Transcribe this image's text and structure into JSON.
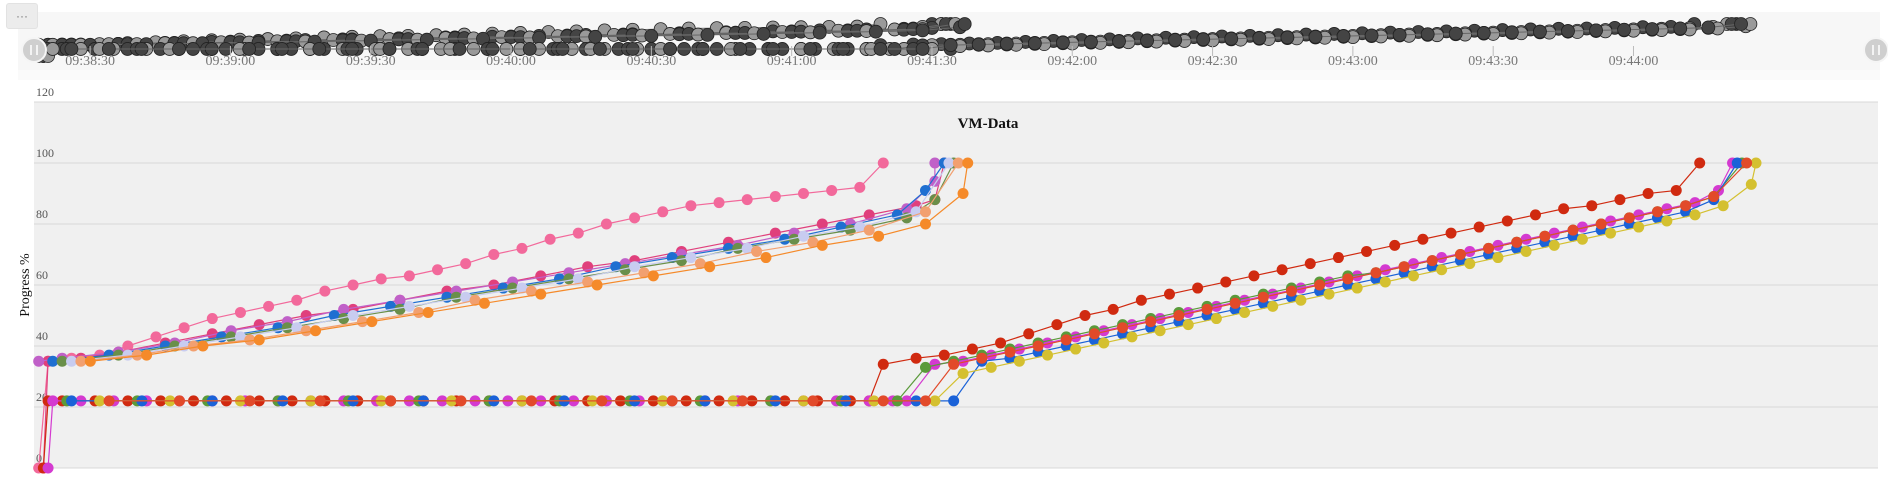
{
  "menu": {
    "icon": "ellipsis-icon",
    "label": "···"
  },
  "chart_data": {
    "type": "line",
    "title": "VM-Data",
    "ylabel": "Progress %",
    "xlabel": "",
    "ylim": [
      0,
      120
    ],
    "yticks": [
      "0",
      "20",
      "40",
      "60",
      "80",
      "100",
      "120"
    ],
    "grid": true,
    "legend": "none",
    "navigator": {
      "xlim": [
        "09:38:18",
        "09:44:51"
      ],
      "ticks": [
        "09:38:30",
        "09:39:00",
        "09:39:30",
        "09:40:00",
        "09:40:30",
        "09:41:00",
        "09:41:30",
        "09:42:00",
        "09:42:30",
        "09:43:00",
        "09:43:30",
        "09:44:00"
      ]
    },
    "main_xlim": [
      "09:38:18",
      "09:44:51"
    ],
    "colors": {
      "plot_bg": "#f0f0f0",
      "nav_bg": "#f7f7f7",
      "grid": "#d8d8d8",
      "nav_marker": "#444444"
    },
    "series": [
      {
        "color": "#f2699b",
        "x": [
          "09:38:19",
          "09:38:21",
          "09:38:26",
          "09:38:32",
          "09:38:38",
          "09:38:44",
          "09:38:50",
          "09:38:56",
          "09:39:02",
          "09:39:08",
          "09:39:14",
          "09:39:20",
          "09:39:26",
          "09:39:32",
          "09:39:38",
          "09:39:44",
          "09:39:50",
          "09:39:56",
          "09:40:02",
          "09:40:08",
          "09:40:14",
          "09:40:20",
          "09:40:26",
          "09:40:32",
          "09:40:38",
          "09:40:44",
          "09:40:50",
          "09:40:56",
          "09:41:02",
          "09:41:08",
          "09:41:14",
          "09:41:19"
        ],
        "y": [
          0,
          35,
          36,
          37,
          40,
          43,
          46,
          49,
          51,
          53,
          55,
          58,
          60,
          62,
          63,
          65,
          67,
          70,
          72,
          75,
          77,
          80,
          82,
          84,
          86,
          87,
          88,
          89,
          90,
          91,
          92,
          100
        ]
      },
      {
        "color": "#e0407c",
        "x": [
          "09:38:20",
          "09:38:21",
          "09:38:28",
          "09:38:36",
          "09:38:46",
          "09:38:56",
          "09:39:06",
          "09:39:16",
          "09:39:26",
          "09:39:36",
          "09:39:46",
          "09:39:56",
          "09:40:06",
          "09:40:16",
          "09:40:26",
          "09:40:36",
          "09:40:46",
          "09:40:56",
          "09:41:06",
          "09:41:16",
          "09:41:26",
          "09:41:30",
          "09:41:32"
        ],
        "y": [
          0,
          35,
          36,
          38,
          41,
          44,
          47,
          50,
          52,
          55,
          58,
          60,
          63,
          66,
          68,
          71,
          74,
          77,
          80,
          83,
          86,
          88,
          100
        ]
      },
      {
        "color": "#c060c8",
        "x": [
          "09:38:19",
          "09:38:24",
          "09:38:36",
          "09:38:48",
          "09:39:00",
          "09:39:12",
          "09:39:24",
          "09:39:36",
          "09:39:48",
          "09:40:00",
          "09:40:12",
          "09:40:24",
          "09:40:36",
          "09:40:48",
          "09:41:00",
          "09:41:12",
          "09:41:24",
          "09:41:30",
          "09:41:30"
        ],
        "y": [
          35,
          36,
          38,
          41,
          45,
          48,
          52,
          55,
          58,
          61,
          64,
          67,
          70,
          73,
          77,
          80,
          85,
          94,
          100
        ]
      },
      {
        "color": "#1f6fd1",
        "x": [
          "09:38:22",
          "09:38:34",
          "09:38:46",
          "09:38:58",
          "09:39:10",
          "09:39:22",
          "09:39:34",
          "09:39:46",
          "09:39:58",
          "09:40:10",
          "09:40:22",
          "09:40:34",
          "09:40:46",
          "09:40:58",
          "09:41:10",
          "09:41:22",
          "09:41:28",
          "09:41:32"
        ],
        "y": [
          35,
          37,
          40,
          43,
          46,
          50,
          53,
          56,
          59,
          62,
          66,
          69,
          72,
          75,
          79,
          83,
          91,
          100
        ]
      },
      {
        "color": "#6a8f4a",
        "x": [
          "09:38:24",
          "09:38:36",
          "09:38:48",
          "09:39:00",
          "09:39:12",
          "09:39:24",
          "09:39:36",
          "09:39:48",
          "09:40:00",
          "09:40:12",
          "09:40:24",
          "09:40:36",
          "09:40:48",
          "09:41:00",
          "09:41:12",
          "09:41:24",
          "09:41:30",
          "09:41:34"
        ],
        "y": [
          35,
          37,
          40,
          43,
          46,
          49,
          52,
          56,
          59,
          62,
          65,
          68,
          72,
          75,
          78,
          82,
          88,
          100
        ]
      },
      {
        "color": "#c8ccf0",
        "x": [
          "09:38:26",
          "09:38:38",
          "09:38:50",
          "09:39:02",
          "09:39:14",
          "09:39:26",
          "09:39:38",
          "09:39:50",
          "09:40:02",
          "09:40:14",
          "09:40:26",
          "09:40:38",
          "09:40:50",
          "09:41:02",
          "09:41:14",
          "09:41:26",
          "09:41:33"
        ],
        "y": [
          35,
          37,
          40,
          43,
          46,
          50,
          53,
          56,
          59,
          62,
          66,
          69,
          72,
          76,
          79,
          84,
          100
        ]
      },
      {
        "color": "#f2a070",
        "x": [
          "09:38:28",
          "09:38:40",
          "09:38:52",
          "09:39:04",
          "09:39:16",
          "09:39:28",
          "09:39:40",
          "09:39:52",
          "09:40:04",
          "09:40:16",
          "09:40:28",
          "09:40:40",
          "09:40:52",
          "09:41:04",
          "09:41:16",
          "09:41:28",
          "09:41:35"
        ],
        "y": [
          35,
          37,
          40,
          42,
          45,
          48,
          51,
          55,
          58,
          61,
          64,
          67,
          71,
          74,
          78,
          84,
          100
        ]
      },
      {
        "color": "#f58a2a",
        "x": [
          "09:38:30",
          "09:38:42",
          "09:38:54",
          "09:39:06",
          "09:39:18",
          "09:39:30",
          "09:39:42",
          "09:39:54",
          "09:40:06",
          "09:40:18",
          "09:40:30",
          "09:40:42",
          "09:40:54",
          "09:41:06",
          "09:41:18",
          "09:41:28",
          "09:41:36",
          "09:41:37"
        ],
        "y": [
          35,
          37,
          40,
          42,
          45,
          48,
          51,
          54,
          57,
          60,
          63,
          66,
          69,
          73,
          76,
          80,
          90,
          100
        ]
      },
      {
        "color": "#d02a10",
        "x": [
          "09:38:20",
          "09:38:21",
          "09:38:24",
          "09:38:31",
          "09:38:38",
          "09:38:45",
          "09:38:52",
          "09:38:59",
          "09:39:06",
          "09:39:13",
          "09:39:20",
          "09:39:27",
          "09:39:34",
          "09:39:41",
          "09:39:48",
          "09:39:55",
          "09:40:02",
          "09:40:09",
          "09:40:16",
          "09:40:23",
          "09:40:30",
          "09:40:37",
          "09:40:44",
          "09:40:51",
          "09:40:58",
          "09:41:05",
          "09:41:12",
          "09:41:16",
          "09:41:19",
          "09:41:26",
          "09:41:32",
          "09:41:38",
          "09:41:44",
          "09:41:50",
          "09:41:56",
          "09:42:02",
          "09:42:08",
          "09:42:14",
          "09:42:20",
          "09:42:26",
          "09:42:32",
          "09:42:38",
          "09:42:44",
          "09:42:50",
          "09:42:56",
          "09:43:02",
          "09:43:08",
          "09:43:14",
          "09:43:20",
          "09:43:26",
          "09:43:32",
          "09:43:38",
          "09:43:44",
          "09:43:50",
          "09:43:56",
          "09:44:02",
          "09:44:08",
          "09:44:13"
        ],
        "y": [
          0,
          22,
          22,
          22,
          22,
          22,
          22,
          22,
          22,
          22,
          22,
          22,
          22,
          22,
          22,
          22,
          22,
          22,
          22,
          22,
          22,
          22,
          22,
          22,
          22,
          22,
          22,
          22,
          34,
          36,
          37,
          39,
          41,
          44,
          47,
          50,
          52,
          55,
          57,
          59,
          61,
          63,
          65,
          67,
          69,
          71,
          73,
          75,
          77,
          79,
          81,
          83,
          85,
          86,
          88,
          90,
          91,
          100
        ]
      },
      {
        "color": "#d43ad0",
        "x": [
          "09:38:21",
          "09:38:22",
          "09:38:28",
          "09:38:35",
          "09:38:42",
          "09:38:49",
          "09:38:56",
          "09:39:03",
          "09:39:10",
          "09:39:17",
          "09:39:24",
          "09:39:31",
          "09:39:38",
          "09:39:45",
          "09:39:52",
          "09:39:59",
          "09:40:06",
          "09:40:13",
          "09:40:20",
          "09:40:27",
          "09:40:34",
          "09:40:41",
          "09:40:48",
          "09:40:55",
          "09:41:02",
          "09:41:09",
          "09:41:16",
          "09:41:21",
          "09:41:24",
          "09:41:30",
          "09:41:36",
          "09:41:42",
          "09:41:48",
          "09:41:54",
          "09:42:00",
          "09:42:06",
          "09:42:12",
          "09:42:18",
          "09:42:24",
          "09:42:30",
          "09:42:36",
          "09:42:42",
          "09:42:48",
          "09:42:54",
          "09:43:00",
          "09:43:06",
          "09:43:12",
          "09:43:18",
          "09:43:24",
          "09:43:30",
          "09:43:36",
          "09:43:42",
          "09:43:48",
          "09:43:54",
          "09:44:00",
          "09:44:06",
          "09:44:12",
          "09:44:17",
          "09:44:20"
        ],
        "y": [
          0,
          22,
          22,
          22,
          22,
          22,
          22,
          22,
          22,
          22,
          22,
          22,
          22,
          22,
          22,
          22,
          22,
          22,
          22,
          22,
          22,
          22,
          22,
          22,
          22,
          22,
          22,
          22,
          22,
          34,
          35,
          37,
          39,
          41,
          43,
          45,
          47,
          49,
          51,
          53,
          55,
          57,
          59,
          61,
          63,
          65,
          67,
          69,
          71,
          73,
          75,
          77,
          79,
          81,
          83,
          85,
          87,
          91,
          100
        ]
      },
      {
        "color": "#5a9a3a",
        "x": [
          "09:38:25",
          "09:38:40",
          "09:38:55",
          "09:39:10",
          "09:39:25",
          "09:39:40",
          "09:39:55",
          "09:40:10",
          "09:40:25",
          "09:40:40",
          "09:40:55",
          "09:41:10",
          "09:41:22",
          "09:41:28",
          "09:41:34",
          "09:41:40",
          "09:41:46",
          "09:41:52",
          "09:41:58",
          "09:42:04",
          "09:42:10",
          "09:42:16",
          "09:42:22",
          "09:42:28",
          "09:42:34",
          "09:42:40",
          "09:42:46",
          "09:42:52",
          "09:42:58",
          "09:43:04",
          "09:43:10",
          "09:43:16",
          "09:43:22",
          "09:43:28",
          "09:43:34",
          "09:43:40",
          "09:43:46",
          "09:43:52",
          "09:43:58",
          "09:44:04",
          "09:44:10",
          "09:44:16",
          "09:44:22"
        ],
        "y": [
          22,
          22,
          22,
          22,
          22,
          22,
          22,
          22,
          22,
          22,
          22,
          22,
          22,
          33,
          35,
          37,
          39,
          41,
          43,
          45,
          47,
          49,
          51,
          53,
          55,
          57,
          59,
          61,
          63,
          64,
          66,
          68,
          70,
          72,
          74,
          76,
          78,
          80,
          82,
          84,
          86,
          89,
          100
        ]
      },
      {
        "color": "#1a62d8",
        "x": [
          "09:38:26",
          "09:38:41",
          "09:38:56",
          "09:39:11",
          "09:39:26",
          "09:39:41",
          "09:39:56",
          "09:40:11",
          "09:40:26",
          "09:40:41",
          "09:40:56",
          "09:41:11",
          "09:41:26",
          "09:41:34",
          "09:41:40",
          "09:41:46",
          "09:41:52",
          "09:41:58",
          "09:42:04",
          "09:42:10",
          "09:42:16",
          "09:42:22",
          "09:42:28",
          "09:42:34",
          "09:42:40",
          "09:42:46",
          "09:42:52",
          "09:42:58",
          "09:43:04",
          "09:43:10",
          "09:43:16",
          "09:43:22",
          "09:43:28",
          "09:43:34",
          "09:43:40",
          "09:43:46",
          "09:43:52",
          "09:43:58",
          "09:44:04",
          "09:44:10",
          "09:44:16",
          "09:44:21"
        ],
        "y": [
          22,
          22,
          22,
          22,
          22,
          22,
          22,
          22,
          22,
          22,
          22,
          22,
          22,
          22,
          35,
          36,
          38,
          40,
          42,
          44,
          46,
          48,
          50,
          52,
          54,
          56,
          58,
          60,
          62,
          64,
          66,
          68,
          70,
          72,
          74,
          76,
          78,
          80,
          82,
          84,
          88,
          100
        ]
      },
      {
        "color": "#d4c030",
        "x": [
          "09:38:32",
          "09:38:47",
          "09:39:02",
          "09:39:17",
          "09:39:32",
          "09:39:47",
          "09:40:02",
          "09:40:17",
          "09:40:32",
          "09:40:47",
          "09:41:02",
          "09:41:17",
          "09:41:30",
          "09:41:36",
          "09:41:42",
          "09:41:48",
          "09:41:54",
          "09:42:00",
          "09:42:06",
          "09:42:12",
          "09:42:18",
          "09:42:24",
          "09:42:30",
          "09:42:36",
          "09:42:42",
          "09:42:48",
          "09:42:54",
          "09:43:00",
          "09:43:06",
          "09:43:12",
          "09:43:18",
          "09:43:24",
          "09:43:30",
          "09:43:36",
          "09:43:42",
          "09:43:48",
          "09:43:54",
          "09:44:00",
          "09:44:06",
          "09:44:12",
          "09:44:18",
          "09:44:24",
          "09:44:25"
        ],
        "y": [
          22,
          22,
          22,
          22,
          22,
          22,
          22,
          22,
          22,
          22,
          22,
          22,
          22,
          31,
          33,
          35,
          37,
          39,
          41,
          43,
          45,
          47,
          49,
          51,
          53,
          55,
          57,
          59,
          61,
          63,
          65,
          67,
          69,
          71,
          73,
          75,
          77,
          79,
          81,
          83,
          86,
          93,
          100
        ]
      },
      {
        "color": "#e24a2a",
        "x": [
          "09:38:34",
          "09:38:49",
          "09:39:04",
          "09:39:19",
          "09:39:34",
          "09:39:49",
          "09:40:04",
          "09:40:19",
          "09:40:34",
          "09:40:49",
          "09:41:04",
          "09:41:19",
          "09:41:28",
          "09:41:34",
          "09:41:40",
          "09:41:46",
          "09:41:52",
          "09:41:58",
          "09:42:04",
          "09:42:10",
          "09:42:16",
          "09:42:22",
          "09:42:28",
          "09:42:34",
          "09:42:40",
          "09:42:46",
          "09:42:52",
          "09:42:58",
          "09:43:04",
          "09:43:10",
          "09:43:16",
          "09:43:22",
          "09:43:28",
          "09:43:34",
          "09:43:40",
          "09:43:46",
          "09:43:52",
          "09:43:58",
          "09:44:04",
          "09:44:10",
          "09:44:16",
          "09:44:23"
        ],
        "y": [
          22,
          22,
          22,
          22,
          22,
          22,
          22,
          22,
          22,
          22,
          22,
          22,
          22,
          34,
          36,
          38,
          40,
          42,
          44,
          46,
          48,
          50,
          52,
          54,
          56,
          58,
          60,
          62,
          64,
          66,
          68,
          70,
          72,
          74,
          76,
          78,
          80,
          82,
          84,
          86,
          89,
          100
        ]
      }
    ]
  }
}
